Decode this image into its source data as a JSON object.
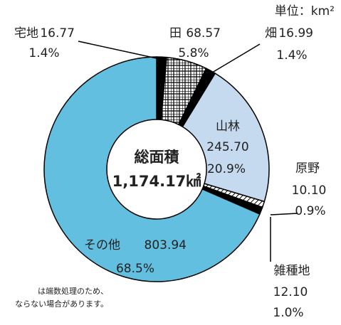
{
  "chart_data": {
    "type": "donut",
    "unit": "単位：km²",
    "center_label": [
      "総面積",
      "1,174.17㎢"
    ],
    "categories": [
      "宅地",
      "田",
      "畑",
      "山林",
      "原野",
      "雑種地",
      "その他"
    ],
    "values": [
      16.77,
      68.57,
      16.99,
      245.7,
      10.1,
      12.1,
      803.94
    ],
    "value_labels": [
      "16.77",
      "68.57",
      "16.99",
      "245.70",
      "10.10",
      "12.10",
      "803.94"
    ],
    "percent_labels": [
      "1.4%",
      "5.8%",
      "1.4%",
      "20.9%",
      "0.9%",
      "1.0%",
      "68.5%"
    ],
    "colors": [
      "#000000",
      "checkered",
      "#000000",
      "#c5d9ef",
      "hatched",
      "#000000",
      "#62bfdf"
    ],
    "notes": [
      "は端数処理のため、",
      "ならない場合があります。"
    ]
  }
}
